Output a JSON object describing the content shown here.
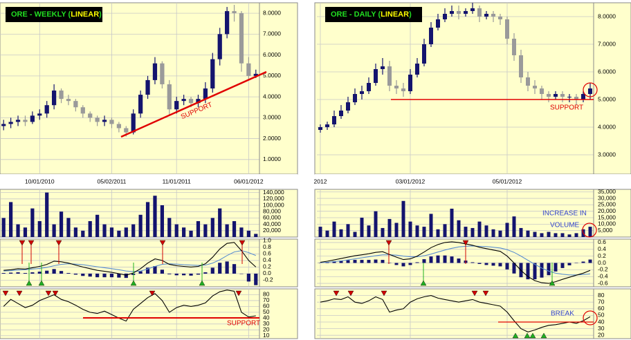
{
  "chart_data": [
    {
      "type": "candlestick",
      "title_parts": [
        "ORE - WEEKLY (",
        "LINEAR",
        ")"
      ],
      "categories": [
        null,
        null,
        null,
        null,
        null,
        "10/01/2010",
        null,
        null,
        null,
        null,
        null,
        null,
        null,
        null,
        null,
        "05/02/2011",
        null,
        null,
        null,
        null,
        null,
        null,
        null,
        null,
        "11/01/2011",
        null,
        null,
        null,
        null,
        null,
        null,
        null,
        null,
        null,
        "06/01/2012",
        null
      ],
      "open": [
        2.6,
        2.7,
        2.8,
        2.9,
        2.8,
        3.1,
        3.2,
        3.6,
        4.3,
        3.9,
        3.8,
        3.5,
        3.2,
        3.0,
        2.8,
        2.9,
        2.7,
        2.5,
        2.3,
        3.2,
        4.1,
        4.8,
        5.6,
        4.6,
        3.4,
        3.8,
        3.9,
        3.7,
        3.9,
        4.4,
        5.8,
        7.0,
        8.1,
        8.0,
        5.6,
        5.0
      ],
      "high": [
        2.9,
        3.0,
        3.1,
        3.1,
        3.3,
        3.4,
        3.8,
        4.6,
        4.4,
        4.1,
        3.9,
        3.6,
        3.3,
        3.1,
        3.1,
        3.0,
        2.8,
        2.6,
        3.4,
        4.3,
        5.0,
        5.9,
        5.7,
        4.8,
        4.0,
        4.1,
        4.0,
        4.1,
        4.7,
        6.1,
        7.3,
        8.3,
        8.4,
        8.1,
        5.9,
        5.3
      ],
      "low": [
        2.4,
        2.5,
        2.6,
        2.6,
        2.7,
        2.9,
        3.0,
        3.4,
        3.7,
        3.6,
        3.3,
        3.0,
        2.8,
        2.6,
        2.6,
        2.5,
        2.3,
        2.1,
        2.2,
        3.0,
        3.9,
        4.6,
        4.4,
        3.1,
        3.2,
        3.6,
        3.5,
        3.5,
        3.7,
        4.2,
        5.5,
        6.8,
        7.6,
        5.2,
        4.8,
        4.9
      ],
      "close": [
        2.7,
        2.8,
        2.9,
        2.8,
        3.1,
        3.2,
        3.6,
        4.3,
        3.9,
        3.8,
        3.5,
        3.2,
        3.0,
        2.8,
        2.9,
        2.7,
        2.5,
        2.3,
        3.2,
        4.1,
        4.8,
        5.6,
        4.6,
        3.4,
        3.8,
        3.9,
        3.7,
        3.9,
        4.4,
        5.8,
        7.0,
        8.1,
        8.0,
        5.6,
        5.0,
        5.1
      ],
      "ylim": [
        0.3,
        8.5
      ],
      "yticks": [
        {
          "value": 1,
          "label": "1.0000"
        },
        {
          "value": 2,
          "label": "2.0000"
        },
        {
          "value": 3,
          "label": "3.0000"
        },
        {
          "value": 4,
          "label": "4.0000"
        },
        {
          "value": 5,
          "label": "5.0000"
        },
        {
          "value": 6,
          "label": "6.0000"
        },
        {
          "value": 7,
          "label": "7.0000"
        },
        {
          "value": 8,
          "label": "8.0000"
        }
      ],
      "grid": true,
      "up_color": "#14146e",
      "down_color": "#9a9a9a",
      "annotations": [
        "SUPPORT",
        "SUPPORT"
      ],
      "volume": {
        "values": [
          60000,
          110000,
          40000,
          30000,
          90000,
          50000,
          140000,
          40000,
          80000,
          60000,
          30000,
          20000,
          50000,
          70000,
          40000,
          30000,
          20000,
          30000,
          40000,
          70000,
          110000,
          130000,
          100000,
          60000,
          40000,
          30000,
          20000,
          50000,
          40000,
          60000,
          90000,
          40000,
          50000,
          30000,
          20000,
          10000
        ],
        "ylim": [
          0,
          150000
        ],
        "color": "#14146e",
        "yticks": [
          {
            "value": 20000,
            "label": "20,000"
          },
          {
            "value": 40000,
            "label": "40,000"
          },
          {
            "value": 60000,
            "label": "60,000"
          },
          {
            "value": 80000,
            "label": "80,000"
          },
          {
            "value": 100000,
            "label": "100,000"
          },
          {
            "value": 120000,
            "label": "120,000"
          },
          {
            "value": 140000,
            "label": "140,000"
          }
        ]
      },
      "macd": {
        "line": [
          0.1,
          0.12,
          0.15,
          0.14,
          0.18,
          0.22,
          0.28,
          0.38,
          0.36,
          0.32,
          0.26,
          0.2,
          0.15,
          0.1,
          0.07,
          0.04,
          0.0,
          -0.05,
          0.02,
          0.15,
          0.32,
          0.45,
          0.4,
          0.28,
          0.24,
          0.22,
          0.2,
          0.22,
          0.3,
          0.5,
          0.75,
          0.92,
          0.95,
          0.7,
          0.4,
          0.2
        ],
        "signal": [
          0.08,
          0.09,
          0.11,
          0.12,
          0.14,
          0.16,
          0.19,
          0.24,
          0.28,
          0.3,
          0.29,
          0.27,
          0.24,
          0.21,
          0.18,
          0.15,
          0.12,
          0.08,
          0.06,
          0.08,
          0.14,
          0.22,
          0.28,
          0.3,
          0.29,
          0.27,
          0.26,
          0.25,
          0.26,
          0.32,
          0.42,
          0.55,
          0.66,
          0.7,
          0.64,
          0.55
        ],
        "histogram": [
          0.02,
          0.03,
          0.04,
          0.02,
          0.04,
          0.06,
          0.09,
          0.14,
          0.08,
          0.02,
          -0.03,
          -0.07,
          -0.09,
          -0.11,
          -0.11,
          -0.11,
          -0.12,
          -0.13,
          -0.04,
          0.07,
          0.18,
          0.23,
          0.12,
          -0.02,
          -0.05,
          -0.05,
          -0.06,
          -0.03,
          0.04,
          0.18,
          0.33,
          0.37,
          0.29,
          0.0,
          -0.24,
          -0.35
        ],
        "ylim": [
          -0.4,
          1.05
        ],
        "line_color": "#000000",
        "signal_color": "#5b8fd0",
        "histogram_color": "#14146e",
        "yticks": [
          -0.2,
          {
            "value": 0,
            "label": "0.0"
          },
          0.2,
          0.4,
          0.6,
          0.8,
          {
            "value": 1,
            "label": "1.0"
          }
        ]
      },
      "rsi": {
        "values": [
          60,
          72,
          65,
          58,
          62,
          70,
          75,
          80,
          72,
          68,
          62,
          55,
          50,
          48,
          52,
          46,
          40,
          35,
          55,
          65,
          75,
          82,
          70,
          50,
          58,
          62,
          60,
          62,
          66,
          78,
          85,
          88,
          86,
          50,
          42,
          44
        ],
        "ylim": [
          5,
          90
        ],
        "color": "#000000",
        "yticks": [
          10,
          20,
          30,
          40,
          50,
          60,
          70,
          80
        ]
      }
    },
    {
      "type": "candlestick",
      "title_parts": [
        "ORE - DAILY (",
        "LINEAR",
        ")"
      ],
      "categories": [
        "2012",
        null,
        null,
        null,
        null,
        null,
        null,
        null,
        null,
        null,
        null,
        null,
        null,
        "03/01/2012",
        null,
        null,
        null,
        null,
        null,
        null,
        null,
        null,
        null,
        null,
        null,
        null,
        null,
        "05/01/2012",
        null,
        null,
        null,
        null,
        null,
        null,
        null,
        null,
        null,
        null,
        null,
        null
      ],
      "open": [
        3.9,
        4.0,
        4.1,
        4.4,
        4.6,
        4.9,
        5.2,
        5.3,
        5.6,
        6.1,
        6.2,
        5.5,
        5.4,
        5.3,
        5.9,
        6.3,
        7.0,
        7.6,
        7.9,
        8.1,
        8.2,
        8.1,
        8.2,
        8.3,
        8.0,
        8.1,
        8.0,
        7.9,
        7.2,
        6.6,
        5.8,
        5.5,
        5.4,
        5.2,
        5.1,
        5.2,
        5.1,
        5.1,
        5.0,
        5.2
      ],
      "high": [
        4.1,
        4.2,
        4.6,
        4.8,
        5.1,
        5.4,
        5.5,
        5.8,
        6.3,
        6.5,
        6.4,
        5.7,
        5.6,
        6.1,
        6.5,
        7.2,
        7.8,
        8.1,
        8.3,
        8.4,
        8.4,
        8.3,
        8.5,
        8.4,
        8.2,
        8.2,
        8.1,
        8.0,
        7.4,
        6.8,
        6.0,
        5.7,
        5.5,
        5.3,
        5.3,
        5.3,
        5.2,
        5.2,
        5.3,
        5.6
      ],
      "low": [
        3.8,
        3.9,
        4.0,
        4.3,
        4.5,
        4.8,
        5.0,
        5.2,
        5.5,
        5.9,
        5.3,
        5.2,
        5.1,
        5.2,
        5.8,
        6.2,
        6.9,
        7.5,
        7.8,
        8.0,
        7.9,
        8.0,
        8.1,
        7.8,
        7.9,
        7.8,
        7.7,
        7.0,
        6.4,
        5.6,
        5.3,
        5.2,
        5.0,
        4.9,
        5.0,
        4.9,
        4.9,
        4.8,
        4.9,
        5.0
      ],
      "close": [
        4.0,
        4.1,
        4.4,
        4.6,
        4.9,
        5.2,
        5.3,
        5.6,
        6.1,
        6.2,
        5.5,
        5.4,
        5.3,
        5.9,
        6.3,
        7.0,
        7.6,
        7.9,
        8.1,
        8.2,
        8.1,
        8.2,
        8.3,
        8.0,
        8.1,
        8.0,
        7.9,
        7.2,
        6.6,
        5.8,
        5.5,
        5.4,
        5.2,
        5.1,
        5.2,
        5.1,
        5.1,
        5.0,
        5.2,
        5.4
      ],
      "ylim": [
        2.3,
        8.5
      ],
      "yticks": [
        {
          "value": 3,
          "label": "3.0000"
        },
        {
          "value": 4,
          "label": "4.0000"
        },
        {
          "value": 5,
          "label": "5.0000"
        },
        {
          "value": 6,
          "label": "6.0000"
        },
        {
          "value": 7,
          "label": "7.0000"
        },
        {
          "value": 8,
          "label": "8.0000"
        }
      ],
      "grid": true,
      "up_color": "#14146e",
      "down_color": "#9a9a9a",
      "annotations": [
        "SUPPORT",
        "INCREASE IN",
        "VOLUME",
        "BREAK"
      ],
      "volume": {
        "values": [
          8000,
          5000,
          12000,
          6000,
          10000,
          4000,
          15000,
          9000,
          20000,
          7000,
          14000,
          11000,
          28000,
          12000,
          9000,
          8000,
          18000,
          6000,
          10000,
          22000,
          13000,
          8000,
          7000,
          12000,
          9000,
          6000,
          5000,
          11000,
          16000,
          7000,
          5000,
          4000,
          3000,
          4000,
          3000,
          3000,
          2000,
          3000,
          6000,
          8000
        ],
        "ylim": [
          0,
          37000
        ],
        "color": "#14146e",
        "yticks": [
          {
            "value": 5000,
            "label": "5,000"
          },
          {
            "value": 10000,
            "label": "10,000"
          },
          {
            "value": 15000,
            "label": "15,000"
          },
          {
            "value": 20000,
            "label": "20,000"
          },
          {
            "value": 25000,
            "label": "25,000"
          },
          {
            "value": 30000,
            "label": "30,000"
          },
          {
            "value": 35000,
            "label": "35,000"
          }
        ]
      },
      "macd": {
        "line": [
          0.02,
          0.05,
          0.09,
          0.13,
          0.17,
          0.21,
          0.24,
          0.27,
          0.31,
          0.33,
          0.25,
          0.17,
          0.1,
          0.12,
          0.2,
          0.32,
          0.45,
          0.54,
          0.6,
          0.62,
          0.6,
          0.56,
          0.52,
          0.46,
          0.42,
          0.38,
          0.34,
          0.2,
          0.0,
          -0.22,
          -0.4,
          -0.52,
          -0.58,
          -0.6,
          -0.55,
          -0.48,
          -0.42,
          -0.36,
          -0.3,
          -0.22
        ],
        "signal": [
          0.01,
          0.02,
          0.04,
          0.06,
          0.09,
          0.12,
          0.15,
          0.18,
          0.21,
          0.24,
          0.24,
          0.23,
          0.2,
          0.18,
          0.18,
          0.21,
          0.26,
          0.32,
          0.38,
          0.43,
          0.47,
          0.49,
          0.5,
          0.49,
          0.48,
          0.46,
          0.44,
          0.39,
          0.31,
          0.2,
          0.08,
          -0.04,
          -0.15,
          -0.24,
          -0.3,
          -0.33,
          -0.35,
          -0.35,
          -0.34,
          -0.32
        ],
        "histogram": [
          0.01,
          0.03,
          0.05,
          0.07,
          0.08,
          0.09,
          0.09,
          0.09,
          0.1,
          0.09,
          0.01,
          -0.06,
          -0.1,
          -0.06,
          0.02,
          0.11,
          0.19,
          0.22,
          0.22,
          0.19,
          0.13,
          0.07,
          0.02,
          -0.03,
          -0.06,
          -0.08,
          -0.1,
          -0.19,
          -0.31,
          -0.42,
          -0.48,
          -0.48,
          -0.43,
          -0.36,
          -0.25,
          -0.15,
          -0.07,
          -0.01,
          0.04,
          0.1
        ],
        "ylim": [
          -0.7,
          0.7
        ],
        "line_color": "#000000",
        "signal_color": "#5b8fd0",
        "histogram_color": "#14146e",
        "yticks": [
          -0.6,
          -0.4,
          -0.2,
          {
            "value": 0,
            "label": "0.0"
          },
          0.2,
          0.4,
          0.6
        ]
      },
      "rsi": {
        "values": [
          70,
          72,
          75,
          74,
          78,
          70,
          68,
          72,
          78,
          74,
          55,
          58,
          60,
          70,
          75,
          78,
          80,
          76,
          74,
          72,
          70,
          72,
          74,
          70,
          68,
          66,
          64,
          55,
          42,
          30,
          25,
          28,
          32,
          35,
          36,
          38,
          40,
          38,
          42,
          48
        ],
        "ylim": [
          15,
          90
        ],
        "color": "#000000",
        "yticks": [
          20,
          30,
          40,
          50,
          60,
          70,
          80
        ]
      }
    }
  ]
}
